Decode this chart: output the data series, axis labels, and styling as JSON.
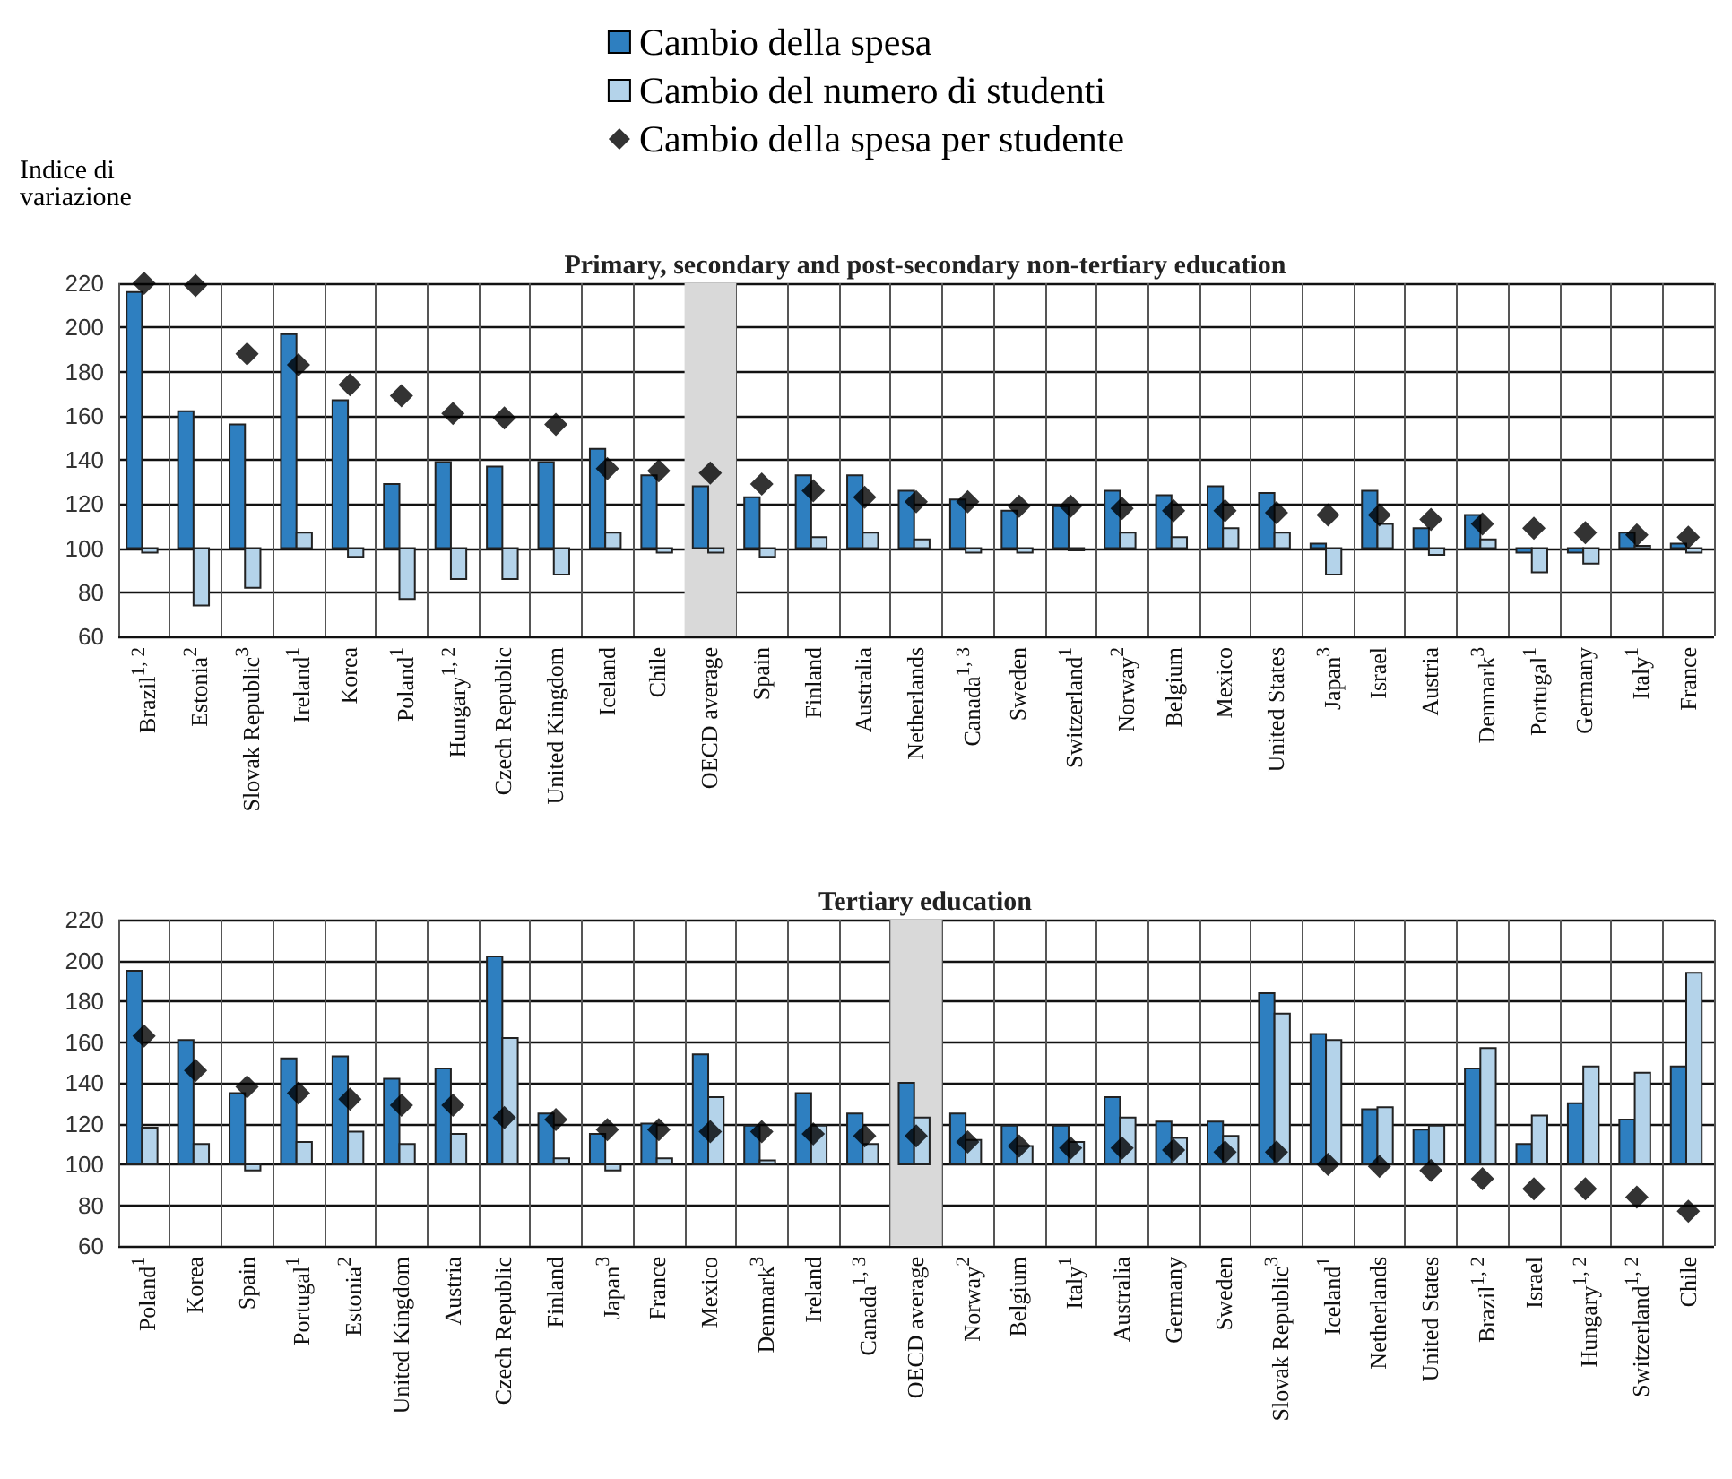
{
  "chart_data": [
    {
      "type": "bar",
      "title": "Primary, secondary and post-secondary non-tertiary education",
      "ylabel": "Indice di\nvariazione",
      "categories": [
        "Brazil$^{1, 2}$",
        "Estonia$^{2}$",
        "Slovak Republic$^{3}$",
        "Ireland$^{1}$",
        "Korea",
        "Poland$^{1}$",
        "Hungary$^{1, 2}$",
        "Czech Republic",
        "United Kingdom",
        "Iceland",
        "Chile",
        "OECD average",
        "Spain",
        "Finland",
        "Australia",
        "Netherlands",
        "Canada$^{1, 3}$",
        "Sweden",
        "Switzerland$^{1}$",
        "Norway$^{2}$",
        "Belgium",
        "Mexico",
        "United States",
        "Japan$^{3}$",
        "Israel",
        "Austria",
        "Denmark$^{3}$",
        "Portugal$^{1}$",
        "Germany",
        "Italy$^{1}$",
        "France"
      ],
      "series": [
        {
          "name": "Cambio della spesa",
          "type": "bar",
          "color": "#2e7fc0",
          "base": [
            100,
            100,
            100,
            100,
            100,
            100,
            100,
            100,
            100,
            100,
            100,
            100,
            100,
            100,
            100,
            100,
            100,
            100,
            100,
            100,
            100,
            100,
            100,
            100,
            100,
            100,
            100,
            100,
            100,
            100,
            100
          ],
          "values": [
            116,
            62,
            56,
            97,
            67,
            29,
            39,
            37,
            39,
            45,
            33,
            28,
            23,
            33,
            33,
            26,
            22,
            17,
            19,
            26,
            24,
            28,
            25,
            2,
            26,
            9,
            15,
            -2,
            -2,
            7,
            2
          ]
        },
        {
          "name": "Cambio del numero di studenti",
          "type": "bar",
          "color": "#b4d3ea",
          "base": [
            100,
            100,
            100,
            100,
            100,
            100,
            100,
            100,
            100,
            100,
            100,
            100,
            100,
            100,
            100,
            100,
            100,
            100,
            100,
            100,
            100,
            100,
            100,
            100,
            100,
            100,
            100,
            100,
            100,
            100,
            100
          ],
          "values": [
            -2,
            -26,
            -18,
            7,
            -4,
            -23,
            -14,
            -14,
            -12,
            7,
            -2,
            -2,
            -4,
            5,
            7,
            4,
            -2,
            -2,
            -1,
            7,
            5,
            9,
            7,
            -12,
            11,
            -3,
            4,
            -11,
            -7,
            1,
            -2
          ]
        },
        {
          "name": "Cambio della spesa per studente",
          "type": "scatter",
          "color": "#000000",
          "values": [
            220,
            219,
            188,
            183,
            174,
            169,
            161,
            159,
            156,
            136,
            135,
            134,
            129,
            126,
            123,
            121,
            121,
            119,
            119,
            118,
            117,
            117,
            116,
            115,
            115,
            113,
            111,
            109,
            107,
            106,
            105
          ]
        }
      ],
      "marker": "diamond",
      "ylim": [
        60,
        220
      ],
      "yticks": [
        60,
        80,
        100,
        120,
        140,
        160,
        180,
        200,
        220
      ],
      "grid": true,
      "legend": "top",
      "bands": [
        {
          "axis": "x",
          "from": "OECD average",
          "to": "OECD average",
          "color": "#d9d9d9"
        }
      ]
    },
    {
      "type": "bar",
      "title": "Tertiary education",
      "categories": [
        "Poland$^{1}$",
        "Korea",
        "Spain",
        "Portugal$^{1}$",
        "Estonia$^{2}$",
        "United Kingdom",
        "Austria",
        "Czech Republic",
        "Finland",
        "Japan$^{3}$",
        "France",
        "Mexico",
        "Denmark$^{3}$",
        "Ireland",
        "Canada$^{1, 3}$",
        "OECD average",
        "Norway$^{2}$",
        "Belgium",
        "Italy$^{1}$",
        "Australia",
        "Germany",
        "Sweden",
        "Slovak Republic$^{3}$",
        "Iceland$^{1}$",
        "Netherlands",
        "United States",
        "Brazil$^{1, 2}$",
        "Israel",
        "Hungary$^{1, 2}$",
        "Switzerland$^{1, 2}$",
        "Chile"
      ],
      "series": [
        {
          "type": "bar",
          "color": "#2e7fc0",
          "base": [
            100,
            100,
            100,
            100,
            100,
            100,
            100,
            100,
            100,
            100,
            100,
            100,
            100,
            100,
            100,
            100,
            100,
            100,
            100,
            100,
            100,
            100,
            100,
            100,
            100,
            100,
            100,
            100,
            100,
            100,
            100
          ],
          "values": [
            95,
            61,
            35,
            52,
            53,
            42,
            47,
            102,
            25,
            15,
            20,
            54,
            19,
            35,
            25,
            40,
            25,
            19,
            19,
            33,
            21,
            21,
            84,
            64,
            27,
            17,
            47,
            10,
            30,
            22,
            48
          ]
        },
        {
          "type": "bar",
          "color": "#b4d3ea",
          "base": [
            100,
            100,
            100,
            100,
            100,
            100,
            100,
            100,
            100,
            100,
            100,
            100,
            100,
            100,
            100,
            100,
            100,
            100,
            100,
            100,
            100,
            100,
            100,
            100,
            100,
            100,
            100,
            100,
            100,
            100,
            100
          ],
          "values": [
            18,
            10,
            -3,
            11,
            16,
            10,
            15,
            62,
            3,
            -3,
            3,
            33,
            2,
            19,
            10,
            23,
            12,
            9,
            11,
            23,
            13,
            14,
            74,
            61,
            28,
            19,
            57,
            24,
            48,
            45,
            94
          ]
        },
        {
          "type": "scatter",
          "color": "#000000",
          "values": [
            163,
            146,
            138,
            135,
            132,
            129,
            129,
            123,
            122,
            117,
            117,
            116,
            116,
            115,
            114,
            114,
            111,
            109,
            108,
            108,
            107,
            106,
            106,
            100,
            99,
            97,
            93,
            88,
            88,
            84,
            77
          ]
        }
      ],
      "marker": "diamond",
      "ylim": [
        60,
        220
      ],
      "yticks": [
        60,
        80,
        100,
        120,
        140,
        160,
        180,
        200,
        220
      ],
      "grid": true,
      "bands": [
        {
          "axis": "x",
          "from": "OECD average",
          "to": "OECD average",
          "color": "#d9d9d9"
        }
      ]
    }
  ]
}
